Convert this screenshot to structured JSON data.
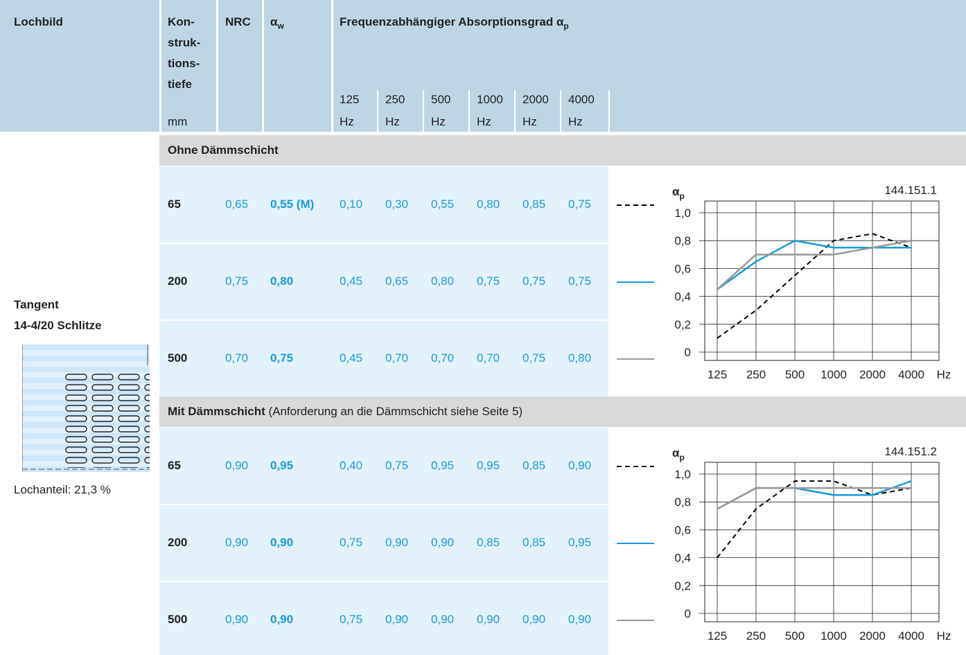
{
  "header": {
    "lochbild": "Lochbild",
    "depth_lines": [
      "Kon-",
      "struk-",
      "tions-",
      "tiefe"
    ],
    "depth_unit": "mm",
    "nrc": "NRC",
    "alpha_w": "α",
    "alpha_w_sub": "w",
    "freq_title": "Frequenzabhängiger Absorptionsgrad α",
    "freq_title_sub": "p",
    "freqs": [
      [
        "125",
        "Hz"
      ],
      [
        "250",
        "Hz"
      ],
      [
        "500",
        "Hz"
      ],
      [
        "1000",
        "Hz"
      ],
      [
        "2000",
        "Hz"
      ],
      [
        "4000",
        "Hz"
      ]
    ]
  },
  "product": {
    "name_lines": [
      "Tangent",
      "14-4/20 Schlitze"
    ],
    "lochanteil": "Lochanteil: 21,3 %"
  },
  "sections": [
    {
      "title": "Ohne Dämmschicht",
      "rows": [
        {
          "depth": "65",
          "nrc": "0,65",
          "alpha_w": "0,55 (M)",
          "values": [
            "0,10",
            "0,30",
            "0,55",
            "0,80",
            "0,85",
            "0,75"
          ]
        },
        {
          "depth": "200",
          "nrc": "0,75",
          "alpha_w": "0,80",
          "values": [
            "0,45",
            "0,65",
            "0,80",
            "0,75",
            "0,75",
            "0,75"
          ]
        },
        {
          "depth": "500",
          "nrc": "0,70",
          "alpha_w": "0,75",
          "values": [
            "0,45",
            "0,70",
            "0,70",
            "0,70",
            "0,75",
            "0,80"
          ]
        }
      ]
    },
    {
      "title": "Mit Dämmschicht",
      "note": "(Anforderung an die Dämmschicht siehe Seite 5)",
      "rows": [
        {
          "depth": "65",
          "nrc": "0,90",
          "alpha_w": "0,95",
          "values": [
            "0,40",
            "0,75",
            "0,95",
            "0,95",
            "0,85",
            "0,90"
          ]
        },
        {
          "depth": "200",
          "nrc": "0,90",
          "alpha_w": "0,90",
          "values": [
            "0,75",
            "0,90",
            "0,90",
            "0,85",
            "0,85",
            "0,95"
          ]
        },
        {
          "depth": "500",
          "nrc": "0,90",
          "alpha_w": "0,90",
          "values": [
            "0,75",
            "0,90",
            "0,90",
            "0,90",
            "0,90",
            "0,90"
          ]
        }
      ]
    }
  ],
  "chart_data": [
    {
      "type": "line",
      "ylabel": "α",
      "ylabel_sub": "p",
      "code": "144.151.1",
      "categories": [
        "125",
        "250",
        "500",
        "1000",
        "2000",
        "4000"
      ],
      "x_unit": "Hz",
      "ylim": [
        0,
        1
      ],
      "yticks": [
        0,
        {
          "value": 0.2,
          "label": "0,2"
        },
        {
          "value": 0.4,
          "label": "0,4"
        },
        {
          "value": 0.6,
          "label": "0,6"
        },
        {
          "value": 0.8,
          "label": "0,8"
        },
        {
          "value": 1,
          "label": "1,0"
        }
      ],
      "grid": true,
      "series": [
        {
          "color": "#000000",
          "dash": "dashed",
          "values": [
            0.1,
            0.3,
            0.55,
            0.8,
            0.85,
            0.75
          ]
        },
        {
          "color": "#1a9ad6",
          "dash": "solid",
          "values": [
            0.45,
            0.65,
            0.8,
            0.75,
            0.75,
            0.75
          ]
        },
        {
          "color": "#9a9a9a",
          "dash": "solid",
          "values": [
            0.45,
            0.7,
            0.7,
            0.7,
            0.75,
            0.8
          ]
        }
      ]
    },
    {
      "type": "line",
      "ylabel": "α",
      "ylabel_sub": "p",
      "code": "144.151.2",
      "categories": [
        "125",
        "250",
        "500",
        "1000",
        "2000",
        "4000"
      ],
      "x_unit": "Hz",
      "ylim": [
        0,
        1
      ],
      "yticks": [
        0,
        {
          "value": 0.2,
          "label": "0,2"
        },
        {
          "value": 0.4,
          "label": "0,4"
        },
        {
          "value": 0.6,
          "label": "0,6"
        },
        {
          "value": 0.8,
          "label": "0,8"
        },
        {
          "value": 1,
          "label": "1,0"
        }
      ],
      "grid": true,
      "series": [
        {
          "color": "#000000",
          "dash": "dashed",
          "values": [
            0.4,
            0.75,
            0.95,
            0.95,
            0.85,
            0.9
          ]
        },
        {
          "color": "#1a9ad6",
          "dash": "solid",
          "values": [
            0.75,
            0.9,
            0.9,
            0.85,
            0.85,
            0.95
          ]
        },
        {
          "color": "#9a9a9a",
          "dash": "solid",
          "values": [
            0.75,
            0.9,
            0.9,
            0.9,
            0.9,
            0.9
          ]
        }
      ]
    }
  ]
}
